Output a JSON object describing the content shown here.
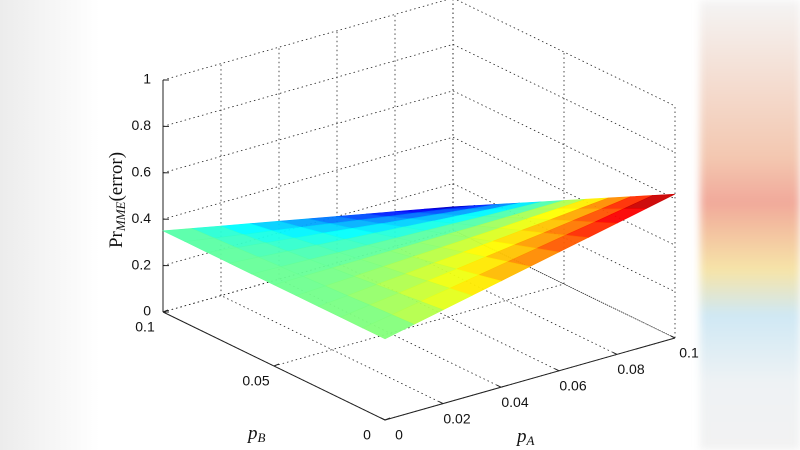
{
  "chart_data": {
    "type": "surface",
    "xlabel": [
      "p",
      "A"
    ],
    "ylabel": [
      "p",
      "B"
    ],
    "zlabel": [
      "Pr",
      "MME",
      "(error)"
    ],
    "x": [
      0,
      0.01,
      0.02,
      0.03,
      0.04,
      0.05,
      0.06,
      0.07,
      0.08,
      0.09,
      0.1
    ],
    "y": [
      0,
      0.01,
      0.02,
      0.03,
      0.04,
      0.05,
      0.06,
      0.07,
      0.08,
      0.09,
      0.1
    ],
    "z": [
      [
        0.35,
        0.377,
        0.404,
        0.431,
        0.458,
        0.485,
        0.512,
        0.539,
        0.566,
        0.593,
        0.62
      ],
      [
        0.35,
        0.372,
        0.394,
        0.415,
        0.437,
        0.459,
        0.481,
        0.503,
        0.524,
        0.546,
        0.568
      ],
      [
        0.35,
        0.367,
        0.383,
        0.4,
        0.416,
        0.433,
        0.45,
        0.466,
        0.483,
        0.499,
        0.516
      ],
      [
        0.35,
        0.361,
        0.373,
        0.384,
        0.396,
        0.407,
        0.418,
        0.43,
        0.441,
        0.453,
        0.464
      ],
      [
        0.35,
        0.356,
        0.362,
        0.369,
        0.375,
        0.381,
        0.387,
        0.393,
        0.4,
        0.406,
        0.412
      ],
      [
        0.35,
        0.351,
        0.352,
        0.353,
        0.354,
        0.355,
        0.356,
        0.357,
        0.358,
        0.359,
        0.36
      ],
      [
        0.35,
        0.346,
        0.342,
        0.337,
        0.333,
        0.329,
        0.325,
        0.321,
        0.316,
        0.312,
        0.308
      ],
      [
        0.35,
        0.341,
        0.331,
        0.322,
        0.312,
        0.303,
        0.294,
        0.284,
        0.275,
        0.265,
        0.256
      ],
      [
        0.35,
        0.335,
        0.321,
        0.306,
        0.292,
        0.277,
        0.262,
        0.248,
        0.233,
        0.219,
        0.204
      ],
      [
        0.35,
        0.33,
        0.31,
        0.291,
        0.271,
        0.251,
        0.231,
        0.211,
        0.192,
        0.172,
        0.152
      ],
      [
        0.35,
        0.325,
        0.3,
        0.275,
        0.25,
        0.225,
        0.2,
        0.175,
        0.15,
        0.125,
        0.1
      ]
    ],
    "xlim": [
      0,
      0.1
    ],
    "xticks": [
      0,
      0.02,
      0.04,
      0.06,
      0.08,
      0.1
    ],
    "ylim": [
      0,
      0.1
    ],
    "yticks": [
      0,
      0.05,
      0.1
    ],
    "zlim": [
      0,
      1
    ],
    "zticks": [
      0,
      0.2,
      0.4,
      0.6,
      0.8,
      1
    ],
    "grid": true,
    "colormap": "jet"
  }
}
